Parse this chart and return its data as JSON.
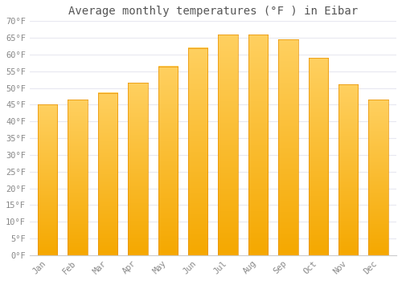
{
  "title": "Average monthly temperatures (°F ) in Eibar",
  "months": [
    "Jan",
    "Feb",
    "Mar",
    "Apr",
    "May",
    "Jun",
    "Jul",
    "Aug",
    "Sep",
    "Oct",
    "Nov",
    "Dec"
  ],
  "values": [
    45,
    46.5,
    48.5,
    51.5,
    56.5,
    62,
    66,
    66,
    64.5,
    59,
    51,
    46.5
  ],
  "bar_color_bottom": "#F5A800",
  "bar_color_top": "#FFD060",
  "ylim": [
    0,
    70
  ],
  "yticks": [
    0,
    5,
    10,
    15,
    20,
    25,
    30,
    35,
    40,
    45,
    50,
    55,
    60,
    65,
    70
  ],
  "background_color": "#FFFFFF",
  "grid_color": "#E8E8F0",
  "title_fontsize": 10,
  "tick_fontsize": 7.5,
  "tick_color": "#888888",
  "title_color": "#555555"
}
